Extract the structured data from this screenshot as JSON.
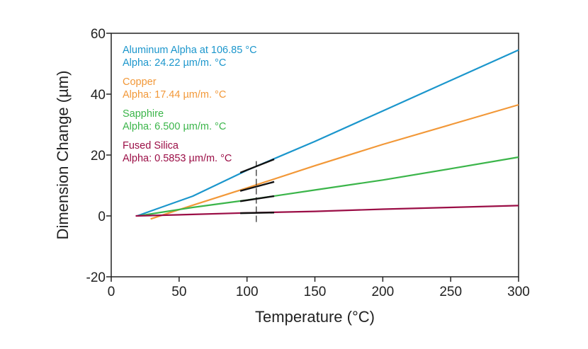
{
  "chart_data": {
    "type": "line",
    "title": "",
    "xlabel": "Temperature (°C)",
    "ylabel": "Dimension Change (µm)",
    "xlim": [
      0,
      300
    ],
    "ylim": [
      -20,
      60
    ],
    "xticks": [
      0,
      50,
      100,
      150,
      200,
      250,
      300
    ],
    "yticks": [
      -20,
      0,
      20,
      40,
      60
    ],
    "grid": false,
    "legend_position": "top-left",
    "series": [
      {
        "name": "Aluminum Alpha at 106.85 °C",
        "alpha_label": "Alpha: 24.22 µm/m. °C",
        "color": "#1b96cc",
        "x": [
          19,
          60,
          100,
          150,
          200,
          250,
          300
        ],
        "y": [
          0,
          6.5,
          15,
          24.5,
          34.5,
          44.5,
          54.5
        ],
        "tangent_x": [
          95,
          120
        ],
        "tangent_y": [
          14.2,
          18.6
        ]
      },
      {
        "name": "Copper",
        "alpha_label": "Alpha: 17.44 µm/m. °C",
        "color": "#f29838",
        "x": [
          29,
          60,
          100,
          150,
          200,
          250,
          300
        ],
        "y": [
          -1,
          3.5,
          9.2,
          16.5,
          23.5,
          30,
          36.5
        ],
        "tangent_x": [
          95,
          120
        ],
        "tangent_y": [
          8.2,
          11.2
        ]
      },
      {
        "name": "Sapphire",
        "alpha_label": "Alpha: 6.500 µm/m. °C",
        "color": "#3bb54a",
        "x": [
          20,
          60,
          100,
          150,
          200,
          250,
          300
        ],
        "y": [
          0,
          2.8,
          5.2,
          8.5,
          11.8,
          15.5,
          19.3
        ],
        "tangent_x": [
          95,
          120
        ],
        "tangent_y": [
          4.8,
          6.5
        ]
      },
      {
        "name": "Fused Silica",
        "alpha_label": "Alpha: 0.5853 µm/m. °C",
        "color": "#9b0e46",
        "x": [
          18,
          60,
          100,
          150,
          200,
          250,
          300
        ],
        "y": [
          0,
          0.5,
          1.0,
          1.5,
          2.2,
          2.8,
          3.4
        ],
        "tangent_x": [
          95,
          120
        ],
        "tangent_y": [
          0.9,
          1.1
        ]
      }
    ],
    "marker_line": {
      "x": 106.85,
      "y_range": [
        -2,
        18
      ]
    }
  }
}
